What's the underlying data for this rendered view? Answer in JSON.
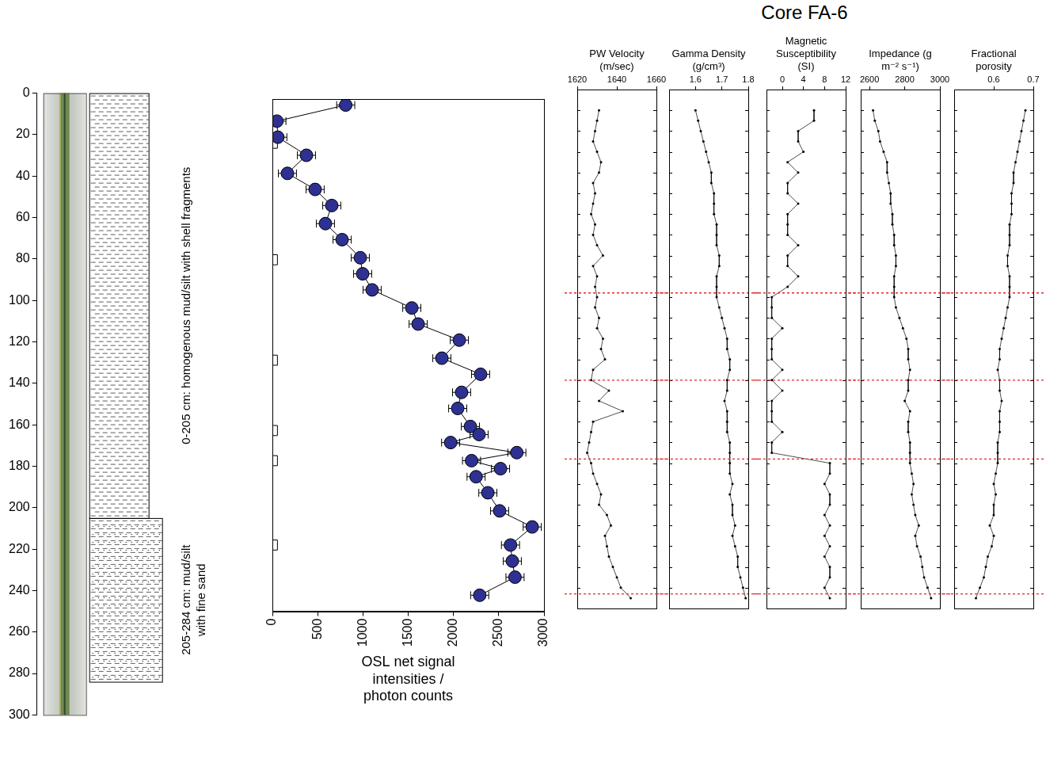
{
  "title": "Core FA-6",
  "chart_data": [
    {
      "type": "lithology",
      "ylim": [
        0,
        300
      ],
      "yticks": [
        0,
        20,
        40,
        60,
        80,
        100,
        120,
        140,
        160,
        180,
        200,
        220,
        240,
        260,
        280,
        300
      ],
      "tick_labels": "y",
      "intervals": [
        {
          "top": 0,
          "bottom": 205,
          "label": "0-205 cm: homogenous mud/silt with shell fragments"
        },
        {
          "top": 205,
          "bottom": 284,
          "label": "205-284 cm: mud/silt with fine sand"
        }
      ]
    },
    {
      "type": "scatter",
      "x_label": "OSL net signal intensities / photon counts",
      "xlim": [
        0,
        3000
      ],
      "xticks": [
        0,
        500,
        1000,
        1500,
        2000,
        2500,
        3000
      ],
      "ylim": [
        0,
        255
      ],
      "tick_labels": "x",
      "series": [
        {
          "marker": "circle",
          "color": "#2e3192",
          "line_style": "solid",
          "x": [
            810,
            50,
            60,
            376,
            166,
            472,
            656,
            586,
            770,
            971,
            997,
            1102,
            1540,
            1610,
            2065,
            1872,
            2300,
            2090,
            2047,
            2187,
            2283,
            1969,
            2700,
            2200,
            2520,
            2250,
            2380,
            2510,
            2870,
            2630,
            2650,
            2680,
            2290
          ],
          "y": [
            3,
            11,
            19,
            28,
            37,
            45,
            53,
            62,
            70,
            79,
            87,
            95,
            104,
            112,
            120,
            129,
            137,
            146,
            154,
            163,
            167,
            171,
            176,
            180,
            184,
            188,
            196,
            205,
            213,
            222,
            230,
            238,
            247
          ],
          "x_error": [
            100,
            100,
            100,
            100,
            100,
            100,
            100,
            100,
            100,
            100,
            100,
            100,
            100,
            100,
            100,
            100,
            100,
            100,
            100,
            100,
            100,
            100,
            100,
            100,
            100,
            100,
            100,
            100,
            100,
            100,
            100,
            100,
            100
          ]
        },
        {
          "marker": "square",
          "color": "#ffffff",
          "line_style": "none",
          "x": [
            0,
            0,
            0,
            0,
            0,
            0
          ],
          "y": [
            22,
            80,
            130,
            165,
            180,
            222
          ]
        }
      ]
    },
    {
      "type": "line",
      "x_label": "PW Velocity (m/sec)",
      "xlim": [
        1620,
        1660
      ],
      "xticks": [
        1620,
        1640,
        1660
      ],
      "ylim": [
        0,
        250
      ],
      "yticks": [
        0,
        10,
        20,
        30,
        40,
        50,
        60,
        70,
        80,
        90,
        100,
        110,
        120,
        130,
        140,
        150,
        160,
        170,
        180,
        190,
        200,
        210,
        220,
        230,
        240,
        250
      ],
      "tick_labels": "x",
      "reference_lines": [
        98,
        140,
        178,
        243
      ],
      "series": [
        {
          "color": "#000000",
          "marker": "circle",
          "line_style": "solid",
          "y": [
            10,
            15,
            20,
            25,
            30,
            35,
            40,
            45,
            50,
            55,
            60,
            65,
            70,
            75,
            80,
            85,
            90,
            95,
            100,
            105,
            110,
            115,
            120,
            125,
            130,
            135,
            140,
            145,
            150,
            155,
            160,
            165,
            170,
            175,
            180,
            185,
            190,
            195,
            200,
            205,
            210,
            215,
            220,
            225,
            230,
            235,
            240,
            245
          ],
          "x": [
            1631,
            1630,
            1629,
            1628,
            1630,
            1632,
            1631,
            1628,
            1629,
            1628,
            1627,
            1629,
            1628,
            1630,
            1633,
            1628,
            1630,
            1629,
            1630,
            1629,
            1631,
            1630,
            1633,
            1632,
            1634,
            1628,
            1627,
            1636,
            1631,
            1643,
            1628,
            1627,
            1626,
            1625,
            1627,
            1628,
            1630,
            1632,
            1631,
            1635,
            1637,
            1634,
            1635,
            1636,
            1638,
            1640,
            1642,
            1647
          ]
        }
      ]
    },
    {
      "type": "line",
      "x_label": "Gamma Density (g/cm³)",
      "xlim": [
        1.5,
        1.8
      ],
      "xticks": [
        1.6,
        1.7,
        1.8
      ],
      "ylim": [
        0,
        250
      ],
      "yticks": [
        0,
        10,
        20,
        30,
        40,
        50,
        60,
        70,
        80,
        90,
        100,
        110,
        120,
        130,
        140,
        150,
        160,
        170,
        180,
        190,
        200,
        210,
        220,
        230,
        240,
        250
      ],
      "tick_labels": "x",
      "reference_lines": [
        98,
        140,
        178,
        243
      ],
      "series": [
        {
          "color": "#000000",
          "marker": "circle",
          "line_style": "solid",
          "y": [
            10,
            15,
            20,
            25,
            30,
            35,
            40,
            45,
            50,
            55,
            60,
            65,
            70,
            75,
            80,
            85,
            90,
            95,
            100,
            105,
            110,
            115,
            120,
            125,
            130,
            135,
            140,
            145,
            150,
            155,
            160,
            165,
            170,
            175,
            180,
            185,
            190,
            195,
            200,
            205,
            210,
            215,
            220,
            225,
            230,
            235,
            240,
            245
          ],
          "x": [
            1.6,
            1.61,
            1.62,
            1.63,
            1.64,
            1.65,
            1.66,
            1.66,
            1.67,
            1.67,
            1.67,
            1.68,
            1.68,
            1.68,
            1.69,
            1.69,
            1.68,
            1.68,
            1.68,
            1.69,
            1.7,
            1.71,
            1.72,
            1.72,
            1.73,
            1.73,
            1.72,
            1.72,
            1.71,
            1.72,
            1.72,
            1.72,
            1.73,
            1.73,
            1.73,
            1.73,
            1.74,
            1.73,
            1.74,
            1.74,
            1.75,
            1.74,
            1.75,
            1.76,
            1.76,
            1.77,
            1.78,
            1.79
          ]
        }
      ]
    },
    {
      "type": "line",
      "x_label": "Magnetic Susceptibility (SI)",
      "xlim": [
        -3,
        12
      ],
      "xticks": [
        0,
        4,
        8,
        12
      ],
      "ylim": [
        0,
        250
      ],
      "yticks": [
        0,
        10,
        20,
        30,
        40,
        50,
        60,
        70,
        80,
        90,
        100,
        110,
        120,
        130,
        140,
        150,
        160,
        170,
        180,
        190,
        200,
        210,
        220,
        230,
        240,
        250
      ],
      "tick_labels": "x",
      "reference_lines": [
        98,
        140,
        178,
        243
      ],
      "series": [
        {
          "color": "#000000",
          "marker": "circle",
          "line_style": "solid",
          "y": [
            10,
            15,
            20,
            25,
            30,
            35,
            40,
            45,
            50,
            55,
            60,
            65,
            70,
            75,
            80,
            85,
            90,
            95,
            100,
            105,
            110,
            115,
            120,
            125,
            130,
            135,
            140,
            145,
            150,
            155,
            160,
            165,
            170,
            175,
            180,
            185,
            190,
            195,
            200,
            205,
            210,
            215,
            220,
            225,
            230,
            235,
            240,
            245
          ],
          "x": [
            6,
            6,
            3,
            3,
            4,
            1,
            3,
            1,
            1,
            3,
            1,
            1,
            1,
            3,
            1,
            1,
            3,
            1,
            -2,
            -2,
            -2,
            0,
            -2,
            -2,
            -2,
            0,
            -2,
            0,
            -2,
            -2,
            -2,
            0,
            -2,
            -2,
            9,
            9,
            8,
            9,
            9,
            8,
            9,
            8,
            9,
            8,
            9,
            9,
            8,
            9
          ]
        }
      ]
    },
    {
      "type": "line",
      "x_label": "Impedance (g m⁻² s⁻¹)",
      "xlim": [
        2550,
        3000
      ],
      "xticks": [
        2600,
        2800,
        3000
      ],
      "ylim": [
        0,
        250
      ],
      "yticks": [
        0,
        10,
        20,
        30,
        40,
        50,
        60,
        70,
        80,
        90,
        100,
        110,
        120,
        130,
        140,
        150,
        160,
        170,
        180,
        190,
        200,
        210,
        220,
        230,
        240,
        250
      ],
      "tick_labels": "x",
      "reference_lines": [
        98,
        140,
        178,
        243
      ],
      "series": [
        {
          "color": "#000000",
          "marker": "circle",
          "line_style": "solid",
          "y": [
            10,
            15,
            20,
            25,
            30,
            35,
            40,
            45,
            50,
            55,
            60,
            65,
            70,
            75,
            80,
            85,
            90,
            95,
            100,
            105,
            110,
            115,
            120,
            125,
            130,
            135,
            140,
            145,
            150,
            155,
            160,
            165,
            170,
            175,
            180,
            185,
            190,
            195,
            200,
            205,
            210,
            215,
            220,
            225,
            230,
            235,
            240,
            245
          ],
          "x": [
            2620,
            2630,
            2650,
            2660,
            2680,
            2700,
            2700,
            2710,
            2720,
            2720,
            2730,
            2730,
            2740,
            2740,
            2750,
            2750,
            2740,
            2740,
            2740,
            2750,
            2770,
            2790,
            2810,
            2820,
            2820,
            2830,
            2820,
            2820,
            2800,
            2830,
            2820,
            2820,
            2830,
            2830,
            2830,
            2840,
            2850,
            2840,
            2850,
            2860,
            2880,
            2860,
            2870,
            2890,
            2900,
            2910,
            2930,
            2950
          ]
        }
      ]
    },
    {
      "type": "line",
      "x_label": "Fractional porosity",
      "xlim": [
        0.5,
        0.7
      ],
      "xticks": [
        0.6,
        0.7
      ],
      "ylim": [
        0,
        250
      ],
      "yticks": [
        0,
        10,
        20,
        30,
        40,
        50,
        60,
        70,
        80,
        90,
        100,
        110,
        120,
        130,
        140,
        150,
        160,
        170,
        180,
        190,
        200,
        210,
        220,
        230,
        240,
        250
      ],
      "tick_labels": "x",
      "reference_lines": [
        98,
        140,
        178,
        243
      ],
      "series": [
        {
          "color": "#000000",
          "marker": "circle",
          "line_style": "solid",
          "y": [
            10,
            15,
            20,
            25,
            30,
            35,
            40,
            45,
            50,
            55,
            60,
            65,
            70,
            75,
            80,
            85,
            90,
            95,
            100,
            105,
            110,
            115,
            120,
            125,
            130,
            135,
            140,
            145,
            150,
            155,
            160,
            165,
            170,
            175,
            180,
            185,
            190,
            195,
            200,
            205,
            210,
            215,
            220,
            225,
            230,
            235,
            240,
            245
          ],
          "x": [
            0.68,
            0.675,
            0.67,
            0.665,
            0.66,
            0.655,
            0.65,
            0.65,
            0.645,
            0.645,
            0.645,
            0.64,
            0.64,
            0.64,
            0.635,
            0.635,
            0.64,
            0.64,
            0.64,
            0.635,
            0.63,
            0.625,
            0.62,
            0.615,
            0.615,
            0.61,
            0.615,
            0.615,
            0.62,
            0.615,
            0.615,
            0.615,
            0.61,
            0.61,
            0.61,
            0.605,
            0.6,
            0.605,
            0.6,
            0.6,
            0.59,
            0.6,
            0.595,
            0.585,
            0.58,
            0.575,
            0.565,
            0.555
          ]
        }
      ]
    }
  ]
}
